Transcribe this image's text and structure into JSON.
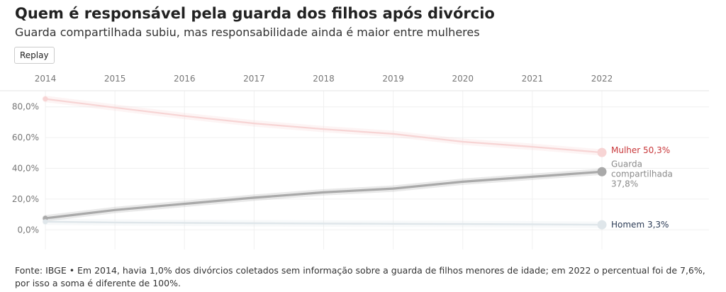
{
  "header": {
    "title": "Quem é responsável pela guarda dos filhos após divórcio",
    "subtitle": "Guarda compartilhada subiu, mas responsabilidade ainda é maior entre mulheres"
  },
  "controls": {
    "replay_label": "Replay"
  },
  "chart_data": {
    "type": "line",
    "x": [
      2014,
      2015,
      2016,
      2017,
      2018,
      2019,
      2020,
      2021,
      2022
    ],
    "xlim": [
      2014,
      2022
    ],
    "ylim": [
      -10,
      90
    ],
    "y_ticks": [
      "0,0%",
      "20,0%",
      "40,0%",
      "60,0%",
      "80,0%"
    ],
    "y_tick_values": [
      0,
      20,
      40,
      60,
      80
    ],
    "grid": true,
    "series": [
      {
        "name": "Mulher",
        "end_label_name": "Mulher",
        "end_label_value": "50,3%",
        "color": "#c8373a",
        "line_color": "#f7d4d4",
        "values": [
          85.1,
          79.5,
          74.0,
          69.2,
          65.5,
          62.4,
          57.3,
          54.0,
          50.3
        ]
      },
      {
        "name": "Guarda compartilhada",
        "end_label_name": "Guarda compartilhada",
        "end_label_value": "37,8%",
        "color": "#8a8a8a",
        "line_color": "#a9a9a9",
        "values": [
          7.5,
          12.9,
          16.9,
          20.9,
          24.4,
          26.8,
          31.3,
          34.5,
          37.8
        ]
      },
      {
        "name": "Homem",
        "end_label_name": "Homem",
        "end_label_value": "3,3%",
        "color": "#2b3b55",
        "line_color": "#dfe6ea",
        "values": [
          5.3,
          4.8,
          4.5,
          4.3,
          4.1,
          3.9,
          3.8,
          3.6,
          3.3
        ]
      }
    ]
  },
  "footer": {
    "source": "Fonte: IBGE • Em 2014, havia 1,0% dos divórcios coletados sem informação sobre a guarda de filhos menores de idade; em 2022 o percentual foi de 7,6%, por isso a soma é diferente de 100%."
  }
}
